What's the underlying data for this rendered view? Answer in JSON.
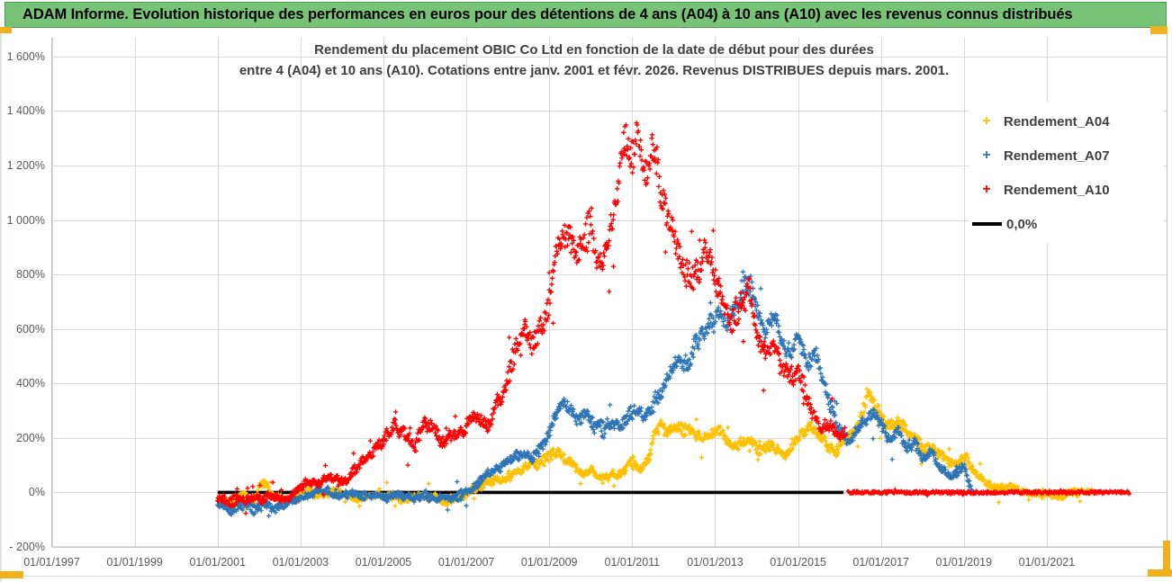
{
  "banner": {
    "title": "ADAM Informe. Evolution historique des performances en euros pour des détentions de 4 ans (A04) à 10 ans (A10) avec les revenus connus distribués"
  },
  "legend": [
    {
      "label": "Rendement_A04",
      "marker": "+",
      "color": "#FFC000"
    },
    {
      "label": "Rendement_A07",
      "marker": "+",
      "color": "#2E75B6"
    },
    {
      "label": "Rendement_A10",
      "marker": "+",
      "color": "#FF0000"
    },
    {
      "label": "0,0%",
      "marker": "line",
      "color": "#000000"
    }
  ],
  "colors": {
    "banner_bg": "#77C377",
    "banner_border": "#4E9E4E",
    "accent_orange": "#F2B01C",
    "grid": "#D9D9D9",
    "plot_border": "#BFBFBF",
    "axis_text": "#595959",
    "title_text": "#3F3F3F",
    "series_a04": "#FFC000",
    "series_a07": "#2E75B6",
    "series_a10": "#FF0000",
    "zero_line": "#000000"
  },
  "chart_data": {
    "type": "scatter",
    "marker": "plus",
    "title": [
      "Rendement du placement OBIC Co Ltd en fonction de la date de début pour des durées",
      "entre 4 (A04) et 10 ans (A10). Cotations entre janv. 2001 et févr. 2026. Revenus DISTRIBUES depuis mars. 2001."
    ],
    "legend_position": "right",
    "x_axis": {
      "type": "date",
      "grid": true,
      "min_year": 1997,
      "max_year": 2023.9,
      "tick_years": [
        1997,
        1999,
        2001,
        2003,
        2005,
        2007,
        2009,
        2011,
        2013,
        2015,
        2017,
        2019,
        2021
      ],
      "tick_labels": [
        "01/01/1997",
        "01/01/1999",
        "01/01/2001",
        "01/01/2003",
        "01/01/2005",
        "01/01/2007",
        "01/01/2009",
        "01/01/2011",
        "01/01/2013",
        "01/01/2015",
        "01/01/2017",
        "01/01/2019",
        "01/01/2021"
      ]
    },
    "y_axis": {
      "unit": "%",
      "grid": true,
      "min": -200,
      "max": 1600,
      "tick_values": [
        1600,
        1400,
        1200,
        1000,
        800,
        600,
        400,
        200,
        0,
        -200
      ],
      "tick_labels": [
        "1 600%",
        "1 400%",
        "1 200%",
        "1 000%",
        "800%",
        "600%",
        "400%",
        "200%",
        "0%",
        "- 200%"
      ]
    },
    "series": [
      {
        "name": "Rendement_A04",
        "color": "#FFC000",
        "kind": "scatter_cloud",
        "anchor_points": [
          [
            2001.0,
            -18
          ],
          [
            2001.3,
            -28
          ],
          [
            2001.6,
            -12
          ],
          [
            2001.9,
            -30
          ],
          [
            2002.0,
            20
          ],
          [
            2002.15,
            38
          ],
          [
            2002.3,
            -8
          ],
          [
            2002.6,
            -28
          ],
          [
            2002.9,
            -18
          ],
          [
            2003.2,
            4
          ],
          [
            2003.5,
            -12
          ],
          [
            2003.8,
            2
          ],
          [
            2004.1,
            -10
          ],
          [
            2004.4,
            -22
          ],
          [
            2004.7,
            -8
          ],
          [
            2005.0,
            -4
          ],
          [
            2005.3,
            -18
          ],
          [
            2005.6,
            -28
          ],
          [
            2005.9,
            -12
          ],
          [
            2006.2,
            -22
          ],
          [
            2006.5,
            -32
          ],
          [
            2006.8,
            -15
          ],
          [
            2007.0,
            -5
          ],
          [
            2007.3,
            18
          ],
          [
            2007.6,
            42
          ],
          [
            2007.9,
            55
          ],
          [
            2008.2,
            75
          ],
          [
            2008.5,
            100
          ],
          [
            2008.8,
            118
          ],
          [
            2009.0,
            132
          ],
          [
            2009.2,
            148
          ],
          [
            2009.4,
            120
          ],
          [
            2009.6,
            95
          ],
          [
            2009.8,
            65
          ],
          [
            2010.0,
            82
          ],
          [
            2010.2,
            55
          ],
          [
            2010.4,
            48
          ],
          [
            2010.6,
            68
          ],
          [
            2010.8,
            85
          ],
          [
            2011.0,
            108
          ],
          [
            2011.2,
            92
          ],
          [
            2011.4,
            120
          ],
          [
            2011.5,
            215
          ],
          [
            2011.7,
            245
          ],
          [
            2011.9,
            228
          ],
          [
            2012.1,
            252
          ],
          [
            2012.3,
            238
          ],
          [
            2012.5,
            215
          ],
          [
            2012.7,
            198
          ],
          [
            2012.9,
            215
          ],
          [
            2013.1,
            225
          ],
          [
            2013.3,
            185
          ],
          [
            2013.5,
            172
          ],
          [
            2013.7,
            198
          ],
          [
            2013.9,
            182
          ],
          [
            2014.1,
            152
          ],
          [
            2014.3,
            175
          ],
          [
            2014.5,
            162
          ],
          [
            2014.7,
            148
          ],
          [
            2014.9,
            185
          ],
          [
            2015.1,
            228
          ],
          [
            2015.3,
            248
          ],
          [
            2015.5,
            205
          ],
          [
            2015.7,
            172
          ],
          [
            2015.9,
            152
          ],
          [
            2016.1,
            178
          ],
          [
            2016.3,
            215
          ],
          [
            2016.5,
            262
          ],
          [
            2016.7,
            375
          ],
          [
            2016.85,
            318
          ],
          [
            2017.0,
            285
          ],
          [
            2017.2,
            232
          ],
          [
            2017.4,
            255
          ],
          [
            2017.6,
            225
          ],
          [
            2017.8,
            205
          ],
          [
            2018.0,
            158
          ],
          [
            2018.2,
            172
          ],
          [
            2018.4,
            142
          ],
          [
            2018.6,
            118
          ],
          [
            2018.8,
            98
          ],
          [
            2019.0,
            135
          ],
          [
            2019.2,
            88
          ],
          [
            2019.4,
            52
          ],
          [
            2019.6,
            28
          ],
          [
            2019.8,
            15
          ],
          [
            2020.0,
            22
          ],
          [
            2020.3,
            8
          ],
          [
            2020.6,
            3
          ],
          [
            2020.9,
            -4
          ],
          [
            2021.2,
            -12
          ],
          [
            2021.5,
            -6
          ],
          [
            2021.8,
            2
          ],
          [
            2022.1,
            0
          ]
        ]
      },
      {
        "name": "Rendement_A07",
        "color": "#2E75B6",
        "kind": "scatter_cloud",
        "anchor_points": [
          [
            2001.0,
            -42
          ],
          [
            2001.3,
            -55
          ],
          [
            2001.6,
            -48
          ],
          [
            2001.9,
            -62
          ],
          [
            2002.1,
            -45
          ],
          [
            2002.4,
            -58
          ],
          [
            2002.7,
            -40
          ],
          [
            2003.0,
            -22
          ],
          [
            2003.3,
            -2
          ],
          [
            2003.6,
            8
          ],
          [
            2003.9,
            -12
          ],
          [
            2004.2,
            -2
          ],
          [
            2004.5,
            -14
          ],
          [
            2004.8,
            -6
          ],
          [
            2005.1,
            -16
          ],
          [
            2005.4,
            -8
          ],
          [
            2005.7,
            -22
          ],
          [
            2006.0,
            -12
          ],
          [
            2006.3,
            -26
          ],
          [
            2006.6,
            -18
          ],
          [
            2006.9,
            -8
          ],
          [
            2007.1,
            8
          ],
          [
            2007.4,
            48
          ],
          [
            2007.7,
            78
          ],
          [
            2008.0,
            118
          ],
          [
            2008.3,
            142
          ],
          [
            2008.6,
            128
          ],
          [
            2008.9,
            188
          ],
          [
            2009.1,
            268
          ],
          [
            2009.3,
            338
          ],
          [
            2009.5,
            302
          ],
          [
            2009.7,
            272
          ],
          [
            2009.9,
            288
          ],
          [
            2010.1,
            252
          ],
          [
            2010.3,
            232
          ],
          [
            2010.5,
            262
          ],
          [
            2010.7,
            242
          ],
          [
            2010.9,
            272
          ],
          [
            2011.1,
            298
          ],
          [
            2011.3,
            272
          ],
          [
            2011.5,
            318
          ],
          [
            2011.7,
            362
          ],
          [
            2011.9,
            442
          ],
          [
            2012.1,
            512
          ],
          [
            2012.3,
            468
          ],
          [
            2012.5,
            532
          ],
          [
            2012.7,
            572
          ],
          [
            2012.9,
            612
          ],
          [
            2013.1,
            648
          ],
          [
            2013.3,
            602
          ],
          [
            2013.5,
            682
          ],
          [
            2013.7,
            795
          ],
          [
            2013.85,
            752
          ],
          [
            2014.0,
            668
          ],
          [
            2014.2,
            608
          ],
          [
            2014.4,
            652
          ],
          [
            2014.6,
            562
          ],
          [
            2014.8,
            512
          ],
          [
            2015.0,
            558
          ],
          [
            2015.2,
            478
          ],
          [
            2015.4,
            518
          ],
          [
            2015.6,
            412
          ],
          [
            2015.8,
            312
          ],
          [
            2016.0,
            232
          ],
          [
            2016.2,
            182
          ],
          [
            2016.4,
            222
          ],
          [
            2016.6,
            262
          ],
          [
            2016.8,
            288
          ],
          [
            2017.0,
            252
          ],
          [
            2017.2,
            188
          ],
          [
            2017.4,
            225
          ],
          [
            2017.6,
            158
          ],
          [
            2017.8,
            185
          ],
          [
            2018.0,
            128
          ],
          [
            2018.2,
            152
          ],
          [
            2018.4,
            98
          ],
          [
            2018.6,
            72
          ],
          [
            2018.8,
            58
          ],
          [
            2019.0,
            95
          ],
          [
            2019.1,
            45
          ],
          [
            2019.25,
            -15
          ]
        ]
      },
      {
        "name": "Rendement_A10",
        "color": "#FF0000",
        "kind": "scatter_cloud",
        "anchor_points": [
          [
            2001.0,
            -25
          ],
          [
            2001.3,
            -35
          ],
          [
            2001.6,
            -20
          ],
          [
            2002.0,
            -30
          ],
          [
            2002.3,
            -12
          ],
          [
            2002.5,
            -25
          ],
          [
            2002.8,
            -8
          ],
          [
            2003.0,
            15
          ],
          [
            2003.2,
            45
          ],
          [
            2003.4,
            30
          ],
          [
            2003.7,
            60
          ],
          [
            2004.0,
            35
          ],
          [
            2004.3,
            80
          ],
          [
            2004.6,
            130
          ],
          [
            2005.0,
            190
          ],
          [
            2005.25,
            245
          ],
          [
            2005.5,
            200
          ],
          [
            2005.75,
            170
          ],
          [
            2006.0,
            265
          ],
          [
            2006.2,
            230
          ],
          [
            2006.4,
            185
          ],
          [
            2006.7,
            210
          ],
          [
            2007.0,
            235
          ],
          [
            2007.2,
            280
          ],
          [
            2007.5,
            245
          ],
          [
            2007.8,
            340
          ],
          [
            2008.0,
            420
          ],
          [
            2008.2,
            550
          ],
          [
            2008.4,
            600
          ],
          [
            2008.6,
            520
          ],
          [
            2008.8,
            600
          ],
          [
            2009.0,
            720
          ],
          [
            2009.2,
            900
          ],
          [
            2009.4,
            950
          ],
          [
            2009.6,
            870
          ],
          [
            2009.8,
            940
          ],
          [
            2010.0,
            990
          ],
          [
            2010.2,
            820
          ],
          [
            2010.4,
            900
          ],
          [
            2010.6,
            1050
          ],
          [
            2010.8,
            1280
          ],
          [
            2011.0,
            1200
          ],
          [
            2011.1,
            1320
          ],
          [
            2011.25,
            1230
          ],
          [
            2011.4,
            1180
          ],
          [
            2011.5,
            1270
          ],
          [
            2011.65,
            1160
          ],
          [
            2011.8,
            1000
          ],
          [
            2012.0,
            950
          ],
          [
            2012.2,
            820
          ],
          [
            2012.4,
            780
          ],
          [
            2012.6,
            820
          ],
          [
            2012.8,
            880
          ],
          [
            2013.0,
            800
          ],
          [
            2013.2,
            700
          ],
          [
            2013.4,
            620
          ],
          [
            2013.6,
            700
          ],
          [
            2013.8,
            760
          ],
          [
            2014.0,
            580
          ],
          [
            2014.2,
            500
          ],
          [
            2014.4,
            540
          ],
          [
            2014.6,
            480
          ],
          [
            2014.8,
            420
          ],
          [
            2015.0,
            440
          ],
          [
            2015.2,
            350
          ],
          [
            2015.4,
            280
          ],
          [
            2015.6,
            230
          ],
          [
            2015.8,
            250
          ],
          [
            2016.0,
            210
          ],
          [
            2016.15,
            230
          ]
        ]
      },
      {
        "name": "Rendement_A10_zero_tail",
        "color": "#FF0000",
        "kind": "dense_flat_line",
        "points": [
          [
            2016.2,
            0
          ],
          [
            2023.0,
            0
          ]
        ]
      },
      {
        "name": "0,0%",
        "color": "#000000",
        "kind": "line",
        "points": [
          [
            2001.0,
            0
          ],
          [
            2016.1,
            0
          ]
        ]
      }
    ]
  }
}
